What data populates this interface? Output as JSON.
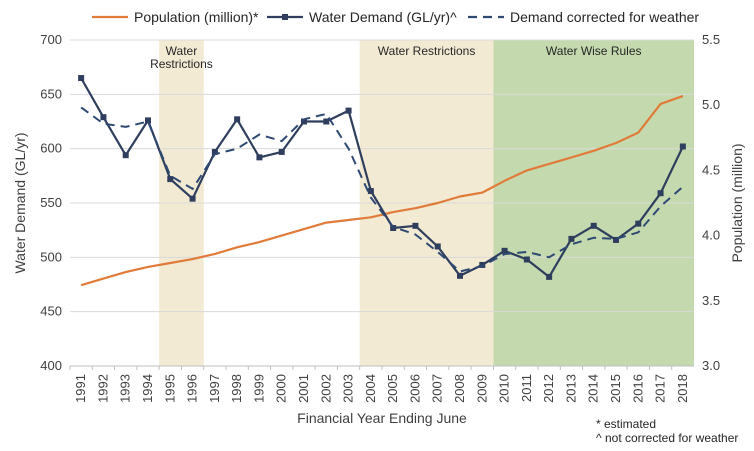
{
  "chart_data": {
    "type": "line",
    "xlabel": "Financial Year Ending June",
    "ylabel": "Water Demand (GL/yr)",
    "y2label": "Population (million)",
    "categories": [
      "1991",
      "1992",
      "1993",
      "1994",
      "1995",
      "1996",
      "1997",
      "1998",
      "1999",
      "2000",
      "2001",
      "2002",
      "2003",
      "2004",
      "2005",
      "2006",
      "2007",
      "2008",
      "2009",
      "2010",
      "2011",
      "2012",
      "2013",
      "2014",
      "2015",
      "2016",
      "2017",
      "2018"
    ],
    "ylim": [
      400,
      700
    ],
    "yticks": [
      "400",
      "450",
      "500",
      "550",
      "600",
      "650",
      "700"
    ],
    "y2lim": [
      3.0,
      5.5
    ],
    "y2ticks": [
      "3.0",
      "3.5",
      "4.0",
      "4.5",
      "5.0",
      "5.5"
    ],
    "series": [
      {
        "name": "Population (million)*",
        "axis": "right",
        "color": "#E07B39",
        "style": "solid",
        "values": [
          3.62,
          3.67,
          3.72,
          3.76,
          3.79,
          3.82,
          3.86,
          3.91,
          3.95,
          4.0,
          4.05,
          4.1,
          4.12,
          4.14,
          4.18,
          4.21,
          4.25,
          4.3,
          4.33,
          4.42,
          4.5,
          4.55,
          4.6,
          4.65,
          4.71,
          4.79,
          5.01,
          5.07
        ]
      },
      {
        "name": "Water Demand (GL/yr)^",
        "axis": "left",
        "color": "#2E3E5C",
        "style": "solid-markers",
        "values": [
          665,
          629,
          594,
          626,
          572,
          554,
          597,
          627,
          592,
          597,
          625,
          625,
          635,
          561,
          527,
          529,
          510,
          483,
          493,
          506,
          498,
          482,
          517,
          529,
          516,
          531,
          559,
          602
        ]
      },
      {
        "name": "Demand corrected for weather",
        "axis": "left",
        "color": "#2E4A73",
        "style": "dashed",
        "values": [
          638,
          623,
          620,
          625,
          575,
          563,
          595,
          600,
          613,
          607,
          627,
          632,
          600,
          555,
          528,
          521,
          505,
          487,
          492,
          503,
          505,
          500,
          512,
          518,
          517,
          523,
          547,
          565
        ]
      }
    ],
    "bands": [
      {
        "label": "Water\nRestrictions",
        "from": "1995",
        "to": "1996",
        "color": "#F2EAD3"
      },
      {
        "label": "Water Restrictions",
        "from": "2004",
        "to": "2009",
        "color": "#F2EAD3"
      },
      {
        "label": "Water Wise Rules",
        "from": "2010",
        "to": "2018",
        "color": "#C4DAAE"
      }
    ],
    "notes": [
      "* estimated",
      "^ not corrected for weather"
    ],
    "legend_position": "top",
    "grid": "horizontal"
  }
}
